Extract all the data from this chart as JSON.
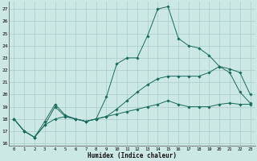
{
  "title": "",
  "xlabel": "Humidex (Indice chaleur)",
  "ylabel": "",
  "bg_color": "#cce8e4",
  "grid_color": "#aaccca",
  "line_color": "#1a6b5e",
  "xlim": [
    -0.5,
    23.5
  ],
  "ylim": [
    15.8,
    27.6
  ],
  "yticks": [
    16,
    17,
    18,
    19,
    20,
    21,
    22,
    23,
    24,
    25,
    26,
    27
  ],
  "xticks": [
    0,
    1,
    2,
    3,
    4,
    5,
    6,
    7,
    8,
    9,
    10,
    11,
    12,
    13,
    14,
    15,
    16,
    17,
    18,
    19,
    20,
    21,
    22,
    23
  ],
  "series": [
    {
      "x": [
        0,
        1,
        2,
        3,
        4,
        5,
        6,
        7,
        8,
        9,
        10,
        11,
        12,
        13,
        14,
        15,
        16,
        17,
        18,
        19,
        20,
        21,
        22,
        23
      ],
      "y": [
        18.0,
        17.0,
        16.5,
        17.8,
        19.2,
        18.3,
        18.0,
        17.8,
        18.0,
        19.8,
        22.5,
        23.0,
        23.0,
        24.8,
        27.0,
        27.2,
        24.6,
        24.0,
        23.8,
        23.2,
        22.3,
        21.8,
        20.2,
        19.3
      ]
    },
    {
      "x": [
        0,
        1,
        2,
        3,
        4,
        5,
        6,
        7,
        8,
        9,
        10,
        11,
        12,
        13,
        14,
        15,
        16,
        17,
        18,
        19,
        20,
        21,
        22,
        23
      ],
      "y": [
        18.0,
        17.0,
        16.5,
        17.5,
        18.0,
        18.2,
        18.0,
        17.8,
        18.0,
        18.2,
        18.4,
        18.6,
        18.8,
        19.0,
        19.2,
        19.5,
        19.2,
        19.0,
        19.0,
        19.0,
        19.2,
        19.3,
        19.2,
        19.2
      ]
    },
    {
      "x": [
        0,
        1,
        2,
        3,
        4,
        5,
        6,
        7,
        8,
        9,
        10,
        11,
        12,
        13,
        14,
        15,
        16,
        17,
        18,
        19,
        20,
        21,
        22,
        23
      ],
      "y": [
        18.0,
        17.0,
        16.5,
        17.5,
        19.0,
        18.2,
        18.0,
        17.8,
        18.0,
        18.2,
        18.8,
        19.5,
        20.2,
        20.8,
        21.3,
        21.5,
        21.5,
        21.5,
        21.5,
        21.8,
        22.3,
        22.1,
        21.8,
        20.0
      ]
    }
  ]
}
